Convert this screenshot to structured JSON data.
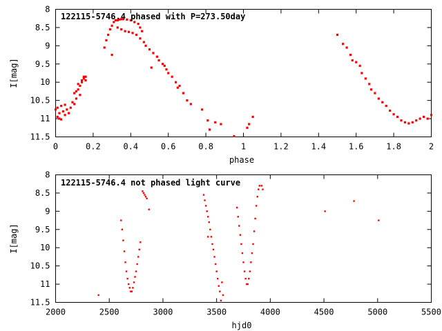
{
  "chart_data": [
    {
      "type": "scatter",
      "title": "122115-5746.4 phased with P=273.50day",
      "xlabel": "phase",
      "ylabel": "I[mag]",
      "xlim": [
        0,
        2
      ],
      "ylim": [
        11.5,
        8
      ],
      "y_inverted": true,
      "xticks": [
        0,
        0.2,
        0.4,
        0.6,
        0.8,
        1,
        1.2,
        1.4,
        1.6,
        1.8,
        2
      ],
      "xtick_labels": [
        "0",
        "0.2",
        "0.4",
        "0.6",
        "0.8",
        "1",
        "1.2",
        "1.4",
        "1.6",
        "1.8",
        "2"
      ],
      "yticks": [
        8,
        8.5,
        9,
        9.5,
        10,
        10.5,
        11,
        11.5
      ],
      "ytick_labels": [
        "8",
        "8.5",
        "9",
        "9.5",
        "10",
        "10.5",
        "11",
        "11.5"
      ],
      "grid": false,
      "marker_color": "#ff0000",
      "series": [
        {
          "points": [
            [
              0.0,
              10.75
            ],
            [
              0.01,
              10.95
            ],
            [
              0.01,
              10.7
            ],
            [
              0.02,
              11.0
            ],
            [
              0.02,
              10.85
            ],
            [
              0.03,
              10.65
            ],
            [
              0.03,
              11.02
            ],
            [
              0.04,
              10.8
            ],
            [
              0.05,
              10.9
            ],
            [
              0.05,
              10.62
            ],
            [
              0.06,
              10.75
            ],
            [
              0.07,
              10.85
            ],
            [
              0.08,
              10.7
            ],
            [
              0.09,
              10.55
            ],
            [
              0.1,
              10.6
            ],
            [
              0.1,
              10.3
            ],
            [
              0.11,
              10.25
            ],
            [
              0.11,
              10.45
            ],
            [
              0.12,
              10.2
            ],
            [
              0.12,
              10.05
            ],
            [
              0.13,
              10.1
            ],
            [
              0.13,
              10.35
            ],
            [
              0.14,
              9.95
            ],
            [
              0.14,
              10.0
            ],
            [
              0.15,
              9.9
            ],
            [
              0.15,
              9.85
            ],
            [
              0.16,
              9.95
            ],
            [
              0.16,
              9.85
            ],
            [
              0.26,
              9.05
            ],
            [
              0.27,
              8.85
            ],
            [
              0.28,
              8.7
            ],
            [
              0.29,
              8.55
            ],
            [
              0.3,
              8.45
            ],
            [
              0.3,
              9.25
            ],
            [
              0.31,
              8.35
            ],
            [
              0.32,
              8.3
            ],
            [
              0.33,
              8.3
            ],
            [
              0.33,
              8.5
            ],
            [
              0.34,
              8.28
            ],
            [
              0.35,
              8.27
            ],
            [
              0.35,
              8.55
            ],
            [
              0.36,
              8.27
            ],
            [
              0.37,
              8.6
            ],
            [
              0.38,
              8.28
            ],
            [
              0.39,
              8.62
            ],
            [
              0.4,
              8.3
            ],
            [
              0.41,
              8.65
            ],
            [
              0.42,
              8.35
            ],
            [
              0.43,
              8.7
            ],
            [
              0.44,
              8.4
            ],
            [
              0.45,
              8.8
            ],
            [
              0.45,
              8.5
            ],
            [
              0.46,
              8.6
            ],
            [
              0.47,
              8.9
            ],
            [
              0.48,
              9.0
            ],
            [
              0.5,
              9.1
            ],
            [
              0.51,
              9.6
            ],
            [
              0.52,
              9.2
            ],
            [
              0.54,
              9.3
            ],
            [
              0.55,
              9.4
            ],
            [
              0.57,
              9.5
            ],
            [
              0.58,
              9.55
            ],
            [
              0.59,
              9.65
            ],
            [
              0.6,
              9.75
            ],
            [
              0.62,
              9.85
            ],
            [
              0.64,
              10.0
            ],
            [
              0.65,
              10.15
            ],
            [
              0.66,
              10.1
            ],
            [
              0.68,
              10.3
            ],
            [
              0.7,
              10.5
            ],
            [
              0.72,
              10.6
            ],
            [
              0.78,
              10.75
            ],
            [
              0.81,
              11.05
            ],
            [
              0.82,
              11.3
            ],
            [
              0.85,
              11.1
            ],
            [
              0.88,
              11.15
            ],
            [
              0.95,
              11.48
            ],
            [
              1.02,
              11.25
            ],
            [
              1.03,
              11.15
            ],
            [
              1.05,
              10.95
            ],
            [
              1.5,
              8.7
            ],
            [
              1.53,
              8.95
            ],
            [
              1.55,
              9.05
            ],
            [
              1.57,
              9.25
            ],
            [
              1.58,
              9.4
            ],
            [
              1.6,
              9.45
            ],
            [
              1.62,
              9.55
            ],
            [
              1.63,
              9.75
            ],
            [
              1.65,
              9.9
            ],
            [
              1.67,
              10.05
            ],
            [
              1.68,
              10.2
            ],
            [
              1.7,
              10.3
            ],
            [
              1.72,
              10.45
            ],
            [
              1.74,
              10.55
            ],
            [
              1.76,
              10.65
            ],
            [
              1.78,
              10.78
            ],
            [
              1.8,
              10.88
            ],
            [
              1.82,
              10.95
            ],
            [
              1.84,
              11.05
            ],
            [
              1.86,
              11.1
            ],
            [
              1.88,
              11.13
            ],
            [
              1.9,
              11.1
            ],
            [
              1.92,
              11.05
            ],
            [
              1.94,
              11.0
            ],
            [
              1.96,
              10.95
            ],
            [
              1.98,
              11.0
            ],
            [
              2.0,
              10.9
            ]
          ]
        }
      ]
    },
    {
      "type": "scatter",
      "title": "122115-5746.4 not phased light curve",
      "xlabel": "hjd0",
      "ylabel": "I[mag]",
      "xlim": [
        2000,
        5500
      ],
      "ylim": [
        11.5,
        8
      ],
      "y_inverted": true,
      "xticks": [
        2000,
        2500,
        3000,
        3500,
        4000,
        4500,
        5000,
        5500
      ],
      "xtick_labels": [
        "2000",
        "2500",
        "3000",
        "3500",
        "4000",
        "4500",
        "5000",
        "5500"
      ],
      "yticks": [
        8,
        8.5,
        9,
        9.5,
        10,
        10.5,
        11,
        11.5
      ],
      "ytick_labels": [
        "8",
        "8.5",
        "9",
        "9.5",
        "10",
        "10.5",
        "11",
        "11.5"
      ],
      "grid": false,
      "marker_color": "#ff0000",
      "series": [
        {
          "points": [
            [
              2400,
              11.3
            ],
            [
              2610,
              9.25
            ],
            [
              2620,
              9.5
            ],
            [
              2630,
              9.8
            ],
            [
              2640,
              10.1
            ],
            [
              2650,
              10.4
            ],
            [
              2660,
              10.65
            ],
            [
              2670,
              10.85
            ],
            [
              2680,
              11.0
            ],
            [
              2690,
              11.1
            ],
            [
              2700,
              11.2
            ],
            [
              2710,
              11.2
            ],
            [
              2720,
              11.1
            ],
            [
              2730,
              10.95
            ],
            [
              2740,
              10.8
            ],
            [
              2750,
              10.65
            ],
            [
              2760,
              10.45
            ],
            [
              2770,
              10.25
            ],
            [
              2780,
              10.05
            ],
            [
              2790,
              9.85
            ],
            [
              2810,
              8.45
            ],
            [
              2820,
              8.5
            ],
            [
              2830,
              8.55
            ],
            [
              2840,
              8.6
            ],
            [
              2850,
              8.65
            ],
            [
              2870,
              8.95
            ],
            [
              3380,
              8.55
            ],
            [
              3390,
              8.7
            ],
            [
              3400,
              8.85
            ],
            [
              3410,
              9.0
            ],
            [
              3420,
              9.15
            ],
            [
              3420,
              9.7
            ],
            [
              3430,
              9.3
            ],
            [
              3440,
              9.5
            ],
            [
              3450,
              9.7
            ],
            [
              3460,
              9.9
            ],
            [
              3470,
              10.05
            ],
            [
              3480,
              10.25
            ],
            [
              3490,
              10.45
            ],
            [
              3500,
              10.65
            ],
            [
              3510,
              10.85
            ],
            [
              3520,
              11.05
            ],
            [
              3530,
              11.2
            ],
            [
              3540,
              11.45
            ],
            [
              3550,
              10.95
            ],
            [
              3560,
              11.3
            ],
            [
              3690,
              8.9
            ],
            [
              3700,
              9.15
            ],
            [
              3710,
              9.4
            ],
            [
              3720,
              9.65
            ],
            [
              3730,
              9.9
            ],
            [
              3740,
              10.15
            ],
            [
              3750,
              10.4
            ],
            [
              3760,
              10.65
            ],
            [
              3770,
              10.85
            ],
            [
              3780,
              11.0
            ],
            [
              3790,
              11.0
            ],
            [
              3800,
              10.85
            ],
            [
              3810,
              10.65
            ],
            [
              3820,
              10.4
            ],
            [
              3830,
              10.15
            ],
            [
              3840,
              9.9
            ],
            [
              3850,
              9.55
            ],
            [
              3860,
              9.2
            ],
            [
              3870,
              8.85
            ],
            [
              3880,
              8.6
            ],
            [
              3890,
              8.4
            ],
            [
              3900,
              8.3
            ],
            [
              3920,
              8.3
            ],
            [
              3930,
              8.4
            ],
            [
              4510,
              9.0
            ],
            [
              4780,
              8.72
            ],
            [
              5010,
              9.25
            ]
          ]
        }
      ]
    }
  ]
}
